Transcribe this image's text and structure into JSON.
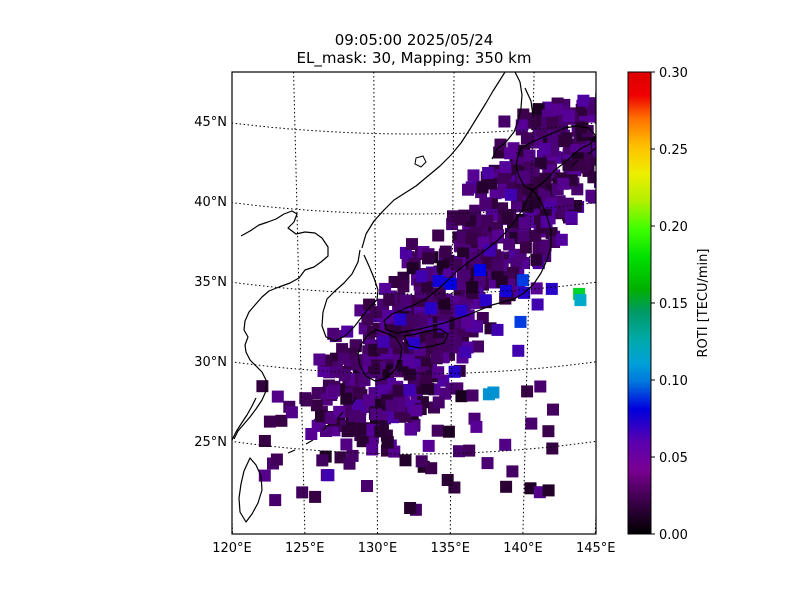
{
  "chart_data": {
    "type": "heatmap",
    "title": [
      "09:05:00 2025/05/24",
      "EL_mask: 30, Mapping: 350 km"
    ],
    "map": {
      "lon_range": [
        120,
        145
      ],
      "lat_range": [
        20,
        49
      ],
      "lon_ticks": [
        "120°E",
        "125°E",
        "130°E",
        "135°E",
        "140°E",
        "145°E"
      ],
      "lat_ticks": [
        "25°N",
        "30°N",
        "35°N",
        "40°N",
        "45°N"
      ],
      "graticule": "dotted"
    },
    "colorbar": {
      "label": "ROTI [TECU/min]",
      "range": [
        0,
        0.3
      ],
      "ticks": [
        "0.00",
        "0.05",
        "0.10",
        "0.15",
        "0.20",
        "0.25",
        "0.30"
      ],
      "colormap": "nipy_spectral-like"
    },
    "roti_observations": [
      {
        "lon": 143.3,
        "lat": 34.4,
        "value": 0.16
      },
      {
        "lon": 143.4,
        "lat": 34.0,
        "value": 0.12
      },
      {
        "lon": 137.5,
        "lat": 28.6,
        "value": 0.11
      },
      {
        "lon": 137.8,
        "lat": 28.7,
        "value": 0.11
      },
      {
        "lon": 139.6,
        "lat": 35.6,
        "value": 0.09
      },
      {
        "lon": 139.5,
        "lat": 33.0,
        "value": 0.09
      },
      {
        "lon": 136.8,
        "lat": 36.4,
        "value": 0.08
      },
      {
        "lon": 134.9,
        "lat": 35.6,
        "value": 0.08
      },
      {
        "lon": 134.1,
        "lat": 35.8,
        "value": 0.07
      },
      {
        "lon": 138.5,
        "lat": 35.0,
        "value": 0.07
      },
      {
        "lon": 135.6,
        "lat": 33.9,
        "value": 0.06
      },
      {
        "lon": 133.6,
        "lat": 34.1,
        "value": 0.06
      },
      {
        "lon": 131.6,
        "lat": 33.4,
        "value": 0.06
      },
      {
        "lon": 137.2,
        "lat": 34.5,
        "value": 0.06
      },
      {
        "lon": 139.7,
        "lat": 34.8,
        "value": 0.06
      },
      {
        "lon": 141.5,
        "lat": 34.9,
        "value": 0.06
      },
      {
        "lon": 135.2,
        "lat": 30.1,
        "value": 0.06
      },
      {
        "lon": 132.5,
        "lat": 31.9,
        "value": 0.06
      },
      {
        "lon": 130.5,
        "lat": 32.0,
        "value": 0.05
      },
      {
        "lon": 138.0,
        "lat": 32.6,
        "value": 0.05
      },
      {
        "lon": 139.4,
        "lat": 31.2,
        "value": 0.05
      },
      {
        "lon": 140.6,
        "lat": 34.0,
        "value": 0.05
      },
      {
        "lon": 133.0,
        "lat": 36.1,
        "value": 0.05
      },
      {
        "lon": 137.4,
        "lat": 37.6,
        "value": 0.05
      },
      {
        "lon": 132.2,
        "lat": 29.0,
        "value": 0.05
      },
      {
        "lon": 135.9,
        "lat": 31.3,
        "value": 0.05
      },
      {
        "lon": 138.7,
        "lat": 41.0,
        "value": 0.05
      },
      {
        "lon": 139.3,
        "lat": 45.3,
        "value": 0.04
      },
      {
        "lon": 138.6,
        "lat": 43.6,
        "value": 0.04
      },
      {
        "lon": 127.5,
        "lat": 27.5,
        "value": 0.04
      },
      {
        "lon": 125.6,
        "lat": 26.0,
        "value": 0.04
      },
      {
        "lon": 126.7,
        "lat": 23.5,
        "value": 0.05
      },
      {
        "lon": 133.5,
        "lat": 25.5,
        "value": 0.04
      },
      {
        "lon": 136.7,
        "lat": 26.6,
        "value": 0.04
      }
    ]
  }
}
